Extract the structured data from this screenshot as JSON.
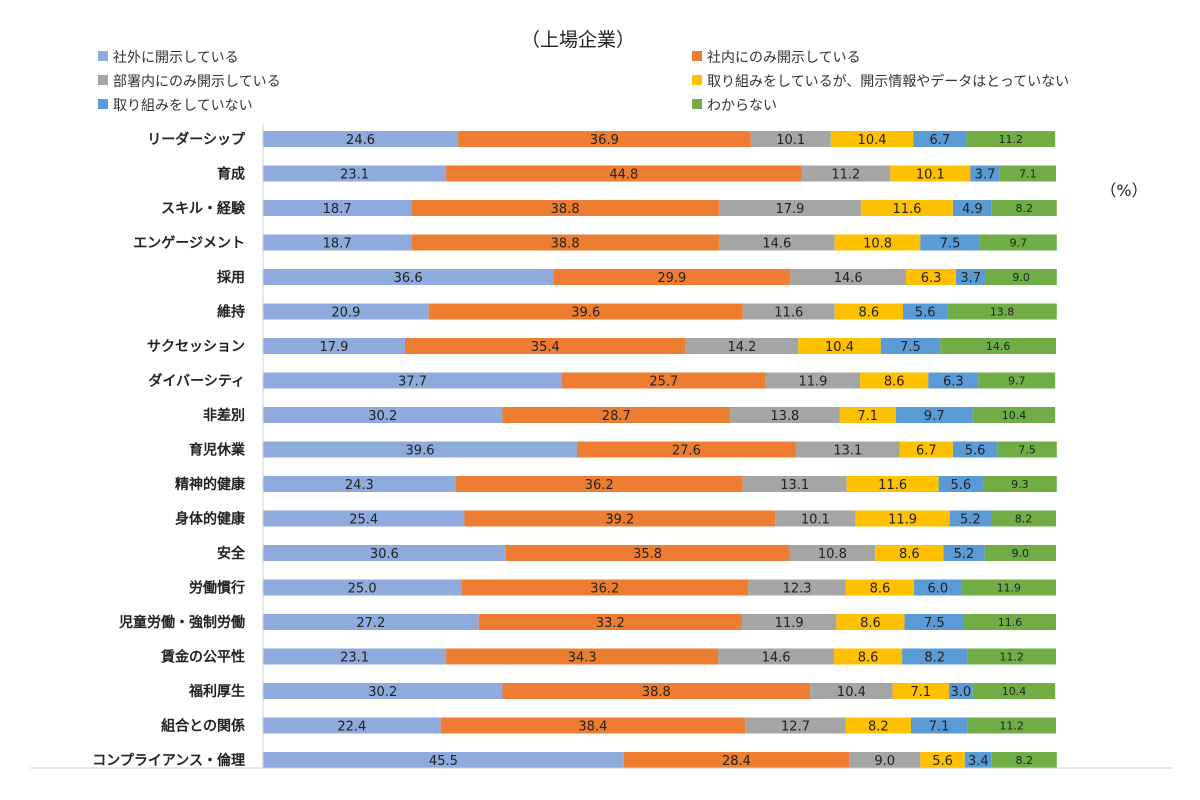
{
  "chart_data": {
    "type": "bar",
    "orientation": "horizontal",
    "stacked": true,
    "title": "（上場企業）",
    "unit_label": "（%）",
    "categories": [
      "リーダーシップ",
      "育成",
      "スキル・経験",
      "エンゲージメント",
      "採用",
      "維持",
      "サクセッション",
      "ダイバーシティ",
      "非差別",
      "育児休業",
      "精神的健康",
      "身体的健康",
      "安全",
      "労働慣行",
      "児童労働・強制労働",
      "賃金の公平性",
      "福利厚生",
      "組合との関係",
      "コンプライアンス・倫理"
    ],
    "series": [
      {
        "name": "社外に開示している",
        "color": "#8faadc",
        "values": [
          24.6,
          23.1,
          18.7,
          18.7,
          36.6,
          20.9,
          17.9,
          37.7,
          30.2,
          39.6,
          24.3,
          25.4,
          30.6,
          25.0,
          27.2,
          23.1,
          30.2,
          22.4,
          45.5
        ]
      },
      {
        "name": "社内にのみ開示している",
        "color": "#ed7d31",
        "values": [
          36.9,
          44.8,
          38.8,
          38.8,
          29.9,
          39.6,
          35.4,
          25.7,
          28.7,
          27.6,
          36.2,
          39.2,
          35.8,
          36.2,
          33.2,
          34.3,
          38.8,
          38.4,
          28.4
        ]
      },
      {
        "name": "部署内にのみ開示している",
        "color": "#a5a5a5",
        "values": [
          10.1,
          11.2,
          17.9,
          14.6,
          14.6,
          11.6,
          14.2,
          11.9,
          13.8,
          13.1,
          13.1,
          10.1,
          10.8,
          12.3,
          11.9,
          14.6,
          10.4,
          12.7,
          9.0
        ]
      },
      {
        "name": "取り組みをしているが、開示情報やデータはとっていない",
        "color": "#ffc000",
        "values": [
          10.4,
          10.1,
          11.6,
          10.8,
          6.3,
          8.6,
          10.4,
          8.6,
          7.1,
          6.7,
          11.6,
          11.9,
          8.6,
          8.6,
          8.6,
          8.6,
          7.1,
          8.2,
          5.6
        ]
      },
      {
        "name": "取り組みをしていない",
        "color": "#5b9bd5",
        "values": [
          6.7,
          3.7,
          4.9,
          7.5,
          3.7,
          5.6,
          7.5,
          6.3,
          9.7,
          5.6,
          5.6,
          5.2,
          5.2,
          6.0,
          7.5,
          8.2,
          3.0,
          7.1,
          3.4
        ]
      },
      {
        "name": "わからない",
        "color": "#70ad47",
        "values": [
          11.2,
          7.1,
          8.2,
          9.7,
          9.0,
          13.8,
          14.6,
          9.7,
          10.4,
          7.5,
          9.3,
          8.2,
          9.0,
          11.9,
          11.6,
          11.2,
          10.4,
          11.2,
          8.2
        ]
      }
    ],
    "xlim": [
      0,
      100
    ],
    "grid": false,
    "legend_position": "top"
  }
}
